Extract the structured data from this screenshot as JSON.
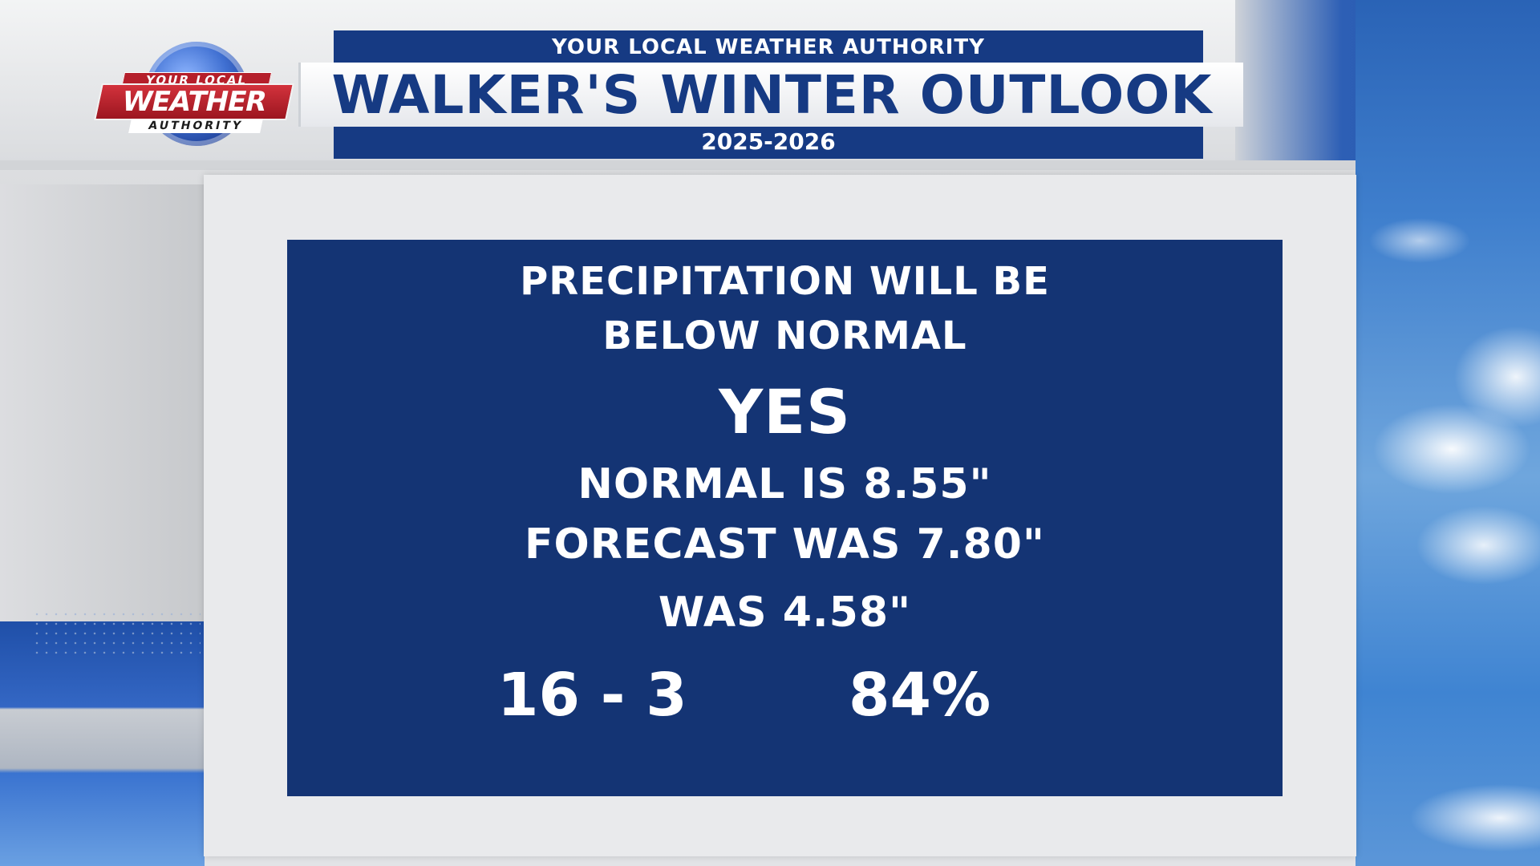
{
  "logo": {
    "top_text": "YOUR LOCAL",
    "main_text": "WEATHER",
    "bottom_text": "AUTHORITY"
  },
  "header": {
    "supertitle": "YOUR LOCAL WEATHER AUTHORITY",
    "title": "WALKER'S WINTER OUTLOOK",
    "subtitle": "2025-2026"
  },
  "card": {
    "line1": "PRECIPITATION WILL BE",
    "line2": "BELOW NORMAL",
    "verdict": "YES",
    "normal": "NORMAL IS 8.55\"",
    "forecast": "FORECAST WAS 7.80\"",
    "actual": "WAS 4.58\"",
    "record": "16 - 3",
    "percent": "84%"
  },
  "colors": {
    "card_blue": "#143474",
    "header_blue": "#163a83",
    "logo_red": "#b51f2b"
  }
}
